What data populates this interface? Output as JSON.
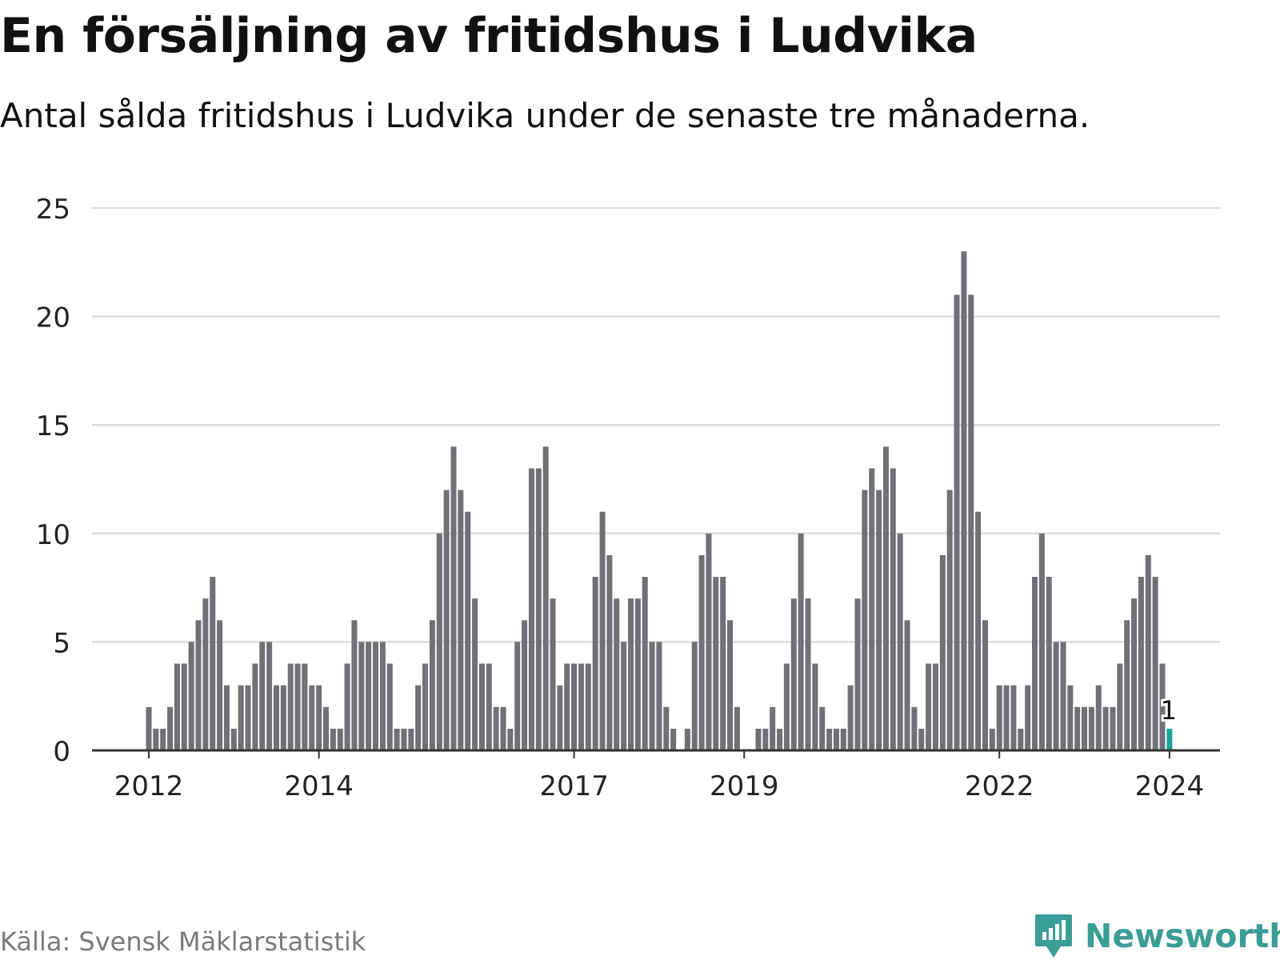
{
  "header": {
    "title": "En försäljning av fritidshus i Ludvika",
    "subtitle": "Antal sålda fritidshus i Ludvika under de senaste tre månaderna."
  },
  "footer": {
    "source": "Källa: Svensk Mäklarstatistik",
    "brand": "Newsworthy",
    "brand_icon": "newsworthy-logo-icon"
  },
  "colors": {
    "bar": "#707075",
    "highlight": "#1aa39a",
    "grid": "#dddddd",
    "axis": "#333333",
    "brand": "#3a9d96"
  },
  "chart_data": {
    "type": "bar",
    "title": "En försäljning av fritidshus i Ludvika",
    "subtitle": "Antal sålda fritidshus i Ludvika under de senaste tre månaderna.",
    "xlabel": "",
    "ylabel": "",
    "ylim": [
      0,
      25
    ],
    "yticks": [
      0,
      5,
      10,
      15,
      20,
      25
    ],
    "grid": true,
    "start": "2012-01",
    "frequency": "monthly",
    "xtick_labels": [
      {
        "index": 0,
        "label": "2012"
      },
      {
        "index": 24,
        "label": "2014"
      },
      {
        "index": 60,
        "label": "2017"
      },
      {
        "index": 84,
        "label": "2019"
      },
      {
        "index": 120,
        "label": "2022"
      },
      {
        "index": 144,
        "label": "2024"
      }
    ],
    "values": [
      2,
      1,
      1,
      2,
      4,
      4,
      5,
      6,
      7,
      8,
      6,
      3,
      1,
      3,
      3,
      4,
      5,
      5,
      3,
      3,
      4,
      4,
      4,
      3,
      3,
      2,
      1,
      1,
      4,
      6,
      5,
      5,
      5,
      5,
      4,
      1,
      1,
      1,
      3,
      4,
      6,
      10,
      12,
      14,
      12,
      11,
      7,
      4,
      4,
      2,
      2,
      1,
      5,
      6,
      13,
      13,
      14,
      7,
      3,
      4,
      4,
      4,
      4,
      8,
      11,
      9,
      7,
      5,
      7,
      7,
      8,
      5,
      5,
      2,
      1,
      0,
      1,
      5,
      9,
      10,
      8,
      8,
      6,
      2,
      0,
      0,
      1,
      1,
      2,
      1,
      4,
      7,
      10,
      7,
      4,
      2,
      1,
      1,
      1,
      3,
      7,
      12,
      13,
      12,
      14,
      13,
      10,
      6,
      2,
      1,
      4,
      4,
      9,
      12,
      21,
      23,
      21,
      11,
      6,
      1,
      3,
      3,
      3,
      1,
      3,
      8,
      10,
      8,
      5,
      5,
      3,
      2,
      2,
      2,
      3,
      2,
      2,
      4,
      6,
      7,
      8,
      9,
      8,
      4,
      1
    ],
    "highlight": {
      "index": 144,
      "label": "1"
    }
  }
}
